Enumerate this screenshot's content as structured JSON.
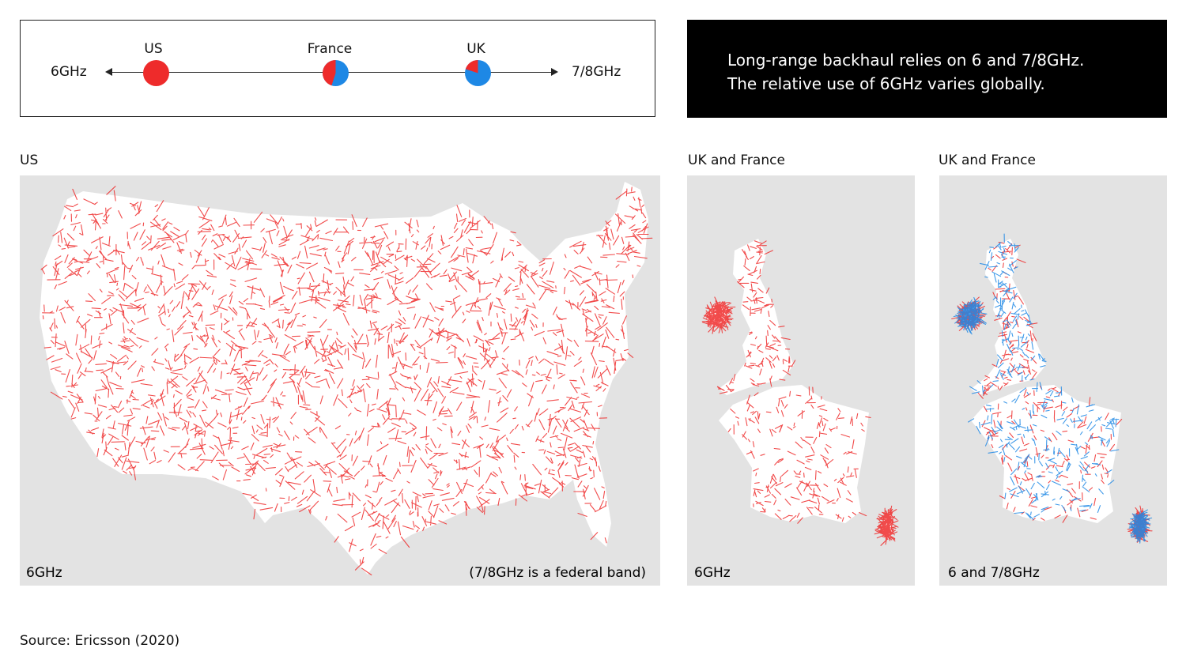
{
  "legend": {
    "left_label": "6GHz",
    "right_label": "7/8GHz",
    "markers": [
      {
        "label": "US",
        "share_6ghz": 1.0
      },
      {
        "label": "France",
        "share_6ghz": 0.45
      },
      {
        "label": "UK",
        "share_6ghz": 0.2
      }
    ]
  },
  "callout": {
    "line1": "Long-range backhaul relies on 6 and 7/8GHz.",
    "line2": "The relative use of 6GHz varies globally."
  },
  "panels": [
    {
      "title": "US",
      "bottom_left": "6GHz",
      "bottom_right": "(7/8GHz is a federal band)"
    },
    {
      "title": "UK and France",
      "bottom_left": "6GHz"
    },
    {
      "title": "UK and France",
      "bottom_left": "6 and 7/8GHz"
    }
  ],
  "source": "Source: Ericsson (2020)",
  "colors": {
    "six_ghz": "#ee2b2b",
    "seven_eight_ghz": "#1e88e5",
    "land": "#ffffff",
    "sea": "#e3e3e3",
    "callout_bg": "#000000"
  }
}
